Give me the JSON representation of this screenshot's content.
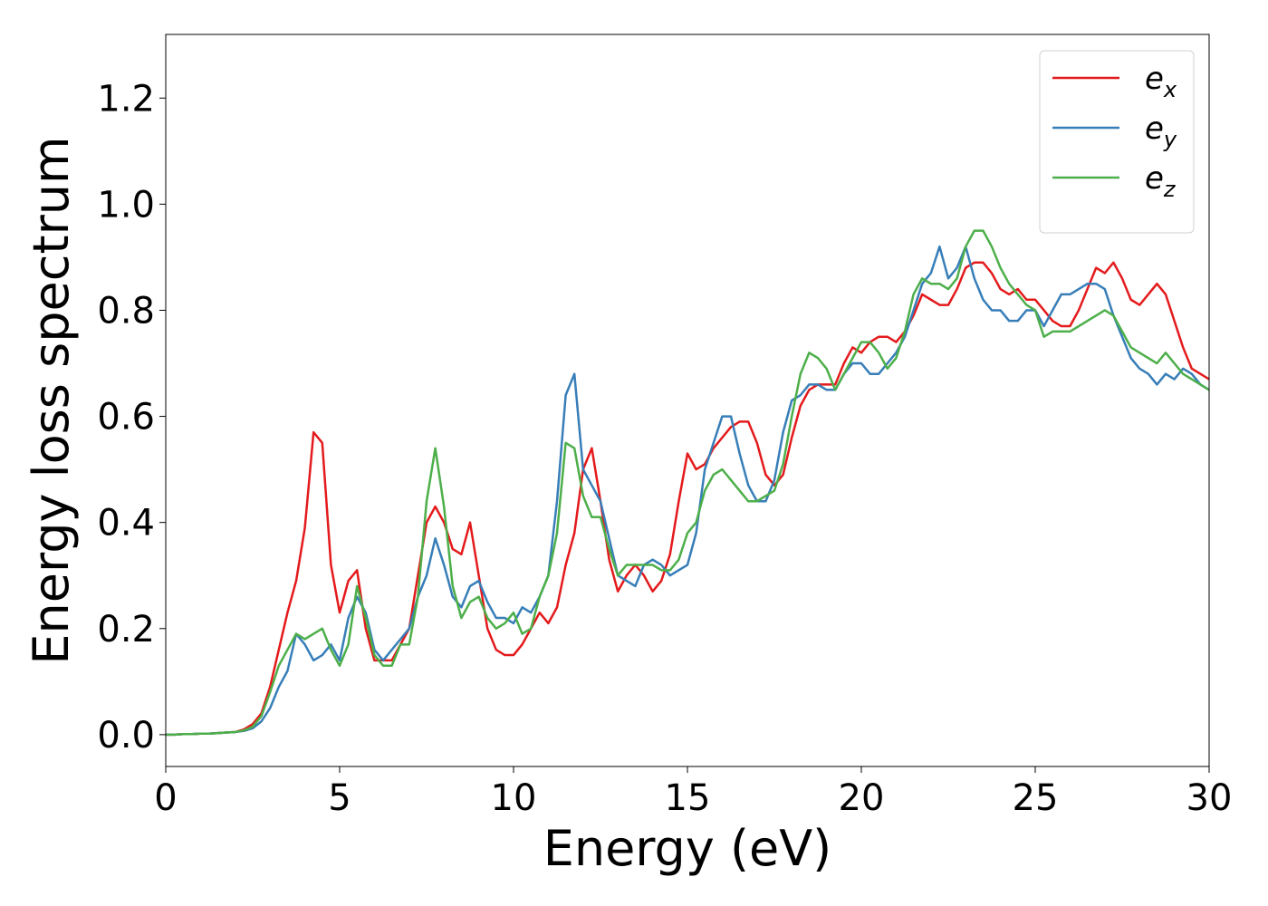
{
  "chart_data": {
    "type": "line",
    "xlabel": "Energy (eV)",
    "ylabel": "Energy loss spectrum",
    "xlim": [
      0,
      30
    ],
    "xticks": [
      0,
      5,
      10,
      15,
      20,
      25,
      30
    ],
    "ylim": [
      -0.06,
      1.32
    ],
    "yticks": [
      {
        "value": 0,
        "label": "0.0"
      },
      0.2,
      0.4,
      0.6,
      0.8,
      {
        "value": 1,
        "label": "1.0"
      },
      1.2
    ],
    "legend": "upper right",
    "grid": false,
    "x": [
      0,
      0.25,
      0.5,
      0.75,
      1,
      1.25,
      1.5,
      1.75,
      2,
      2.25,
      2.5,
      2.75,
      3,
      3.25,
      3.5,
      3.75,
      4,
      4.25,
      4.5,
      4.75,
      5,
      5.25,
      5.5,
      5.75,
      6,
      6.25,
      6.5,
      6.75,
      7,
      7.25,
      7.5,
      7.75,
      8,
      8.25,
      8.5,
      8.75,
      9,
      9.25,
      9.5,
      9.75,
      10,
      10.25,
      10.5,
      10.75,
      11,
      11.25,
      11.5,
      11.75,
      12,
      12.25,
      12.5,
      12.75,
      13,
      13.25,
      13.5,
      13.75,
      14,
      14.25,
      14.5,
      14.75,
      15,
      15.25,
      15.5,
      15.75,
      16,
      16.25,
      16.5,
      16.75,
      17,
      17.25,
      17.5,
      17.75,
      18,
      18.25,
      18.5,
      18.75,
      19,
      19.25,
      19.5,
      19.75,
      20,
      20.25,
      20.5,
      20.75,
      21,
      21.25,
      21.5,
      21.75,
      22,
      22.25,
      22.5,
      22.75,
      23,
      23.25,
      23.5,
      23.75,
      24,
      24.25,
      24.5,
      24.75,
      25,
      25.25,
      25.5,
      25.75,
      26,
      26.25,
      26.5,
      26.75,
      27,
      27.25,
      27.5,
      27.75,
      28,
      28.25,
      28.5,
      28.75,
      29,
      29.25,
      29.5,
      29.75,
      30
    ],
    "series": [
      {
        "name": "ex",
        "color": "#e41a1c",
        "values": [
          0,
          0,
          0.001,
          0.001,
          0.002,
          0.002,
          0.003,
          0.004,
          0.005,
          0.01,
          0.02,
          0.04,
          0.09,
          0.16,
          0.23,
          0.29,
          0.39,
          0.57,
          0.55,
          0.32,
          0.23,
          0.29,
          0.31,
          0.2,
          0.14,
          0.14,
          0.14,
          0.17,
          0.2,
          0.3,
          0.4,
          0.43,
          0.4,
          0.35,
          0.34,
          0.4,
          0.3,
          0.2,
          0.16,
          0.15,
          0.15,
          0.17,
          0.2,
          0.23,
          0.21,
          0.24,
          0.32,
          0.38,
          0.5,
          0.54,
          0.44,
          0.33,
          0.27,
          0.3,
          0.32,
          0.3,
          0.27,
          0.29,
          0.34,
          0.44,
          0.53,
          0.5,
          0.51,
          0.54,
          0.56,
          0.58,
          0.59,
          0.59,
          0.55,
          0.49,
          0.47,
          0.49,
          0.56,
          0.62,
          0.65,
          0.66,
          0.66,
          0.66,
          0.7,
          0.73,
          0.72,
          0.74,
          0.75,
          0.75,
          0.74,
          0.76,
          0.79,
          0.83,
          0.82,
          0.81,
          0.81,
          0.84,
          0.88,
          0.89,
          0.89,
          0.87,
          0.84,
          0.83,
          0.84,
          0.82,
          0.82,
          0.8,
          0.78,
          0.77,
          0.77,
          0.8,
          0.84,
          0.88,
          0.87,
          0.89,
          0.86,
          0.82,
          0.81,
          0.83,
          0.85,
          0.83,
          0.78,
          0.73,
          0.69,
          0.68,
          0.67
        ]
      },
      {
        "name": "ey",
        "color": "#377eb8",
        "values": [
          0,
          0,
          0.001,
          0.001,
          0.002,
          0.002,
          0.003,
          0.004,
          0.005,
          0.007,
          0.012,
          0.025,
          0.05,
          0.09,
          0.12,
          0.19,
          0.17,
          0.14,
          0.15,
          0.17,
          0.14,
          0.22,
          0.26,
          0.23,
          0.16,
          0.14,
          0.16,
          0.18,
          0.2,
          0.26,
          0.3,
          0.37,
          0.32,
          0.26,
          0.24,
          0.28,
          0.29,
          0.25,
          0.22,
          0.22,
          0.21,
          0.24,
          0.23,
          0.26,
          0.3,
          0.44,
          0.64,
          0.68,
          0.5,
          0.47,
          0.44,
          0.37,
          0.3,
          0.29,
          0.28,
          0.32,
          0.33,
          0.32,
          0.3,
          0.31,
          0.32,
          0.38,
          0.5,
          0.55,
          0.6,
          0.6,
          0.53,
          0.47,
          0.44,
          0.44,
          0.48,
          0.57,
          0.63,
          0.64,
          0.66,
          0.66,
          0.65,
          0.65,
          0.68,
          0.7,
          0.7,
          0.68,
          0.68,
          0.7,
          0.72,
          0.75,
          0.8,
          0.85,
          0.87,
          0.92,
          0.86,
          0.88,
          0.92,
          0.86,
          0.82,
          0.8,
          0.8,
          0.78,
          0.78,
          0.8,
          0.8,
          0.77,
          0.8,
          0.83,
          0.83,
          0.84,
          0.85,
          0.85,
          0.84,
          0.79,
          0.75,
          0.71,
          0.69,
          0.68,
          0.66,
          0.68,
          0.67,
          0.69,
          0.68,
          0.66,
          0.65
        ]
      },
      {
        "name": "ez",
        "color": "#4daf4a",
        "values": [
          0,
          0,
          0.001,
          0.001,
          0.002,
          0.002,
          0.003,
          0.004,
          0.005,
          0.008,
          0.015,
          0.035,
          0.08,
          0.13,
          0.16,
          0.19,
          0.18,
          0.19,
          0.2,
          0.16,
          0.13,
          0.17,
          0.28,
          0.22,
          0.15,
          0.13,
          0.13,
          0.17,
          0.17,
          0.26,
          0.44,
          0.54,
          0.43,
          0.28,
          0.22,
          0.25,
          0.26,
          0.22,
          0.2,
          0.21,
          0.23,
          0.19,
          0.2,
          0.26,
          0.3,
          0.38,
          0.55,
          0.54,
          0.45,
          0.41,
          0.41,
          0.35,
          0.3,
          0.32,
          0.32,
          0.32,
          0.32,
          0.31,
          0.31,
          0.33,
          0.38,
          0.4,
          0.46,
          0.49,
          0.5,
          0.48,
          0.46,
          0.44,
          0.44,
          0.45,
          0.46,
          0.51,
          0.6,
          0.68,
          0.72,
          0.71,
          0.69,
          0.65,
          0.68,
          0.71,
          0.74,
          0.74,
          0.72,
          0.69,
          0.71,
          0.76,
          0.83,
          0.86,
          0.85,
          0.85,
          0.84,
          0.86,
          0.92,
          0.95,
          0.95,
          0.92,
          0.88,
          0.85,
          0.83,
          0.81,
          0.8,
          0.75,
          0.76,
          0.76,
          0.76,
          0.77,
          0.78,
          0.79,
          0.8,
          0.79,
          0.76,
          0.73,
          0.72,
          0.71,
          0.7,
          0.72,
          0.7,
          0.68,
          0.67,
          0.66,
          0.65
        ]
      }
    ]
  }
}
